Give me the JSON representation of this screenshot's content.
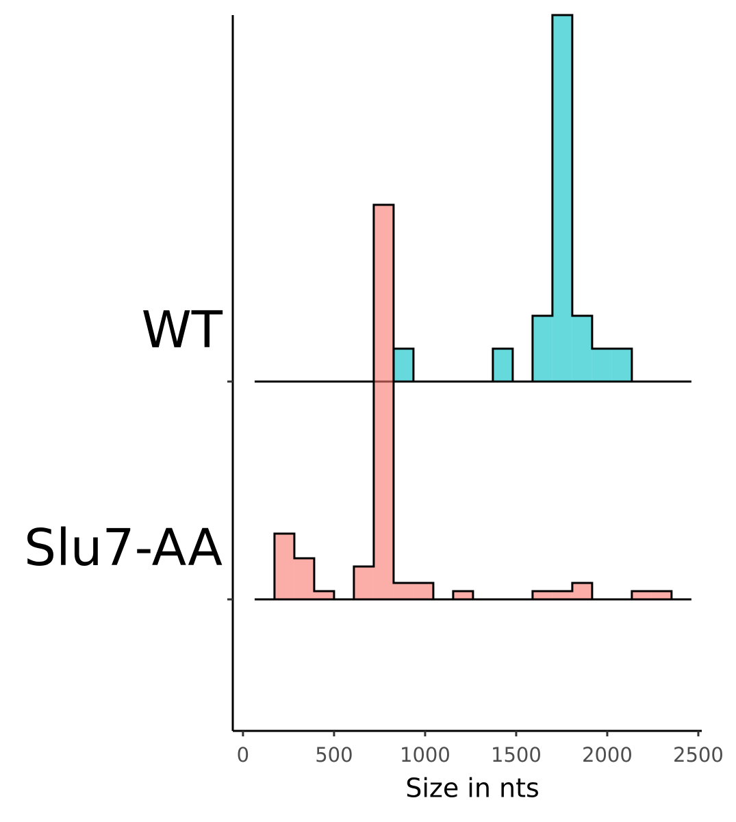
{
  "chart_data": {
    "type": "histogram",
    "x_label": "Size in nts",
    "bins": [
      64,
      173,
      282,
      391,
      500,
      609,
      718,
      827,
      936,
      1045,
      1154,
      1263,
      1372,
      1481,
      1590,
      1699,
      1808,
      1917,
      2026,
      2135,
      2244,
      2353,
      2462
    ],
    "series": [
      {
        "name": "WT",
        "color": "#00BFC4",
        "values": [
          0,
          0,
          0,
          0,
          0,
          0,
          0,
          4,
          0,
          0,
          0,
          0,
          4,
          0,
          8,
          45,
          8,
          4,
          4,
          0,
          0,
          0
        ]
      },
      {
        "name": "Slu7-AA",
        "color": "#F8766D",
        "values": [
          0,
          8,
          5,
          1,
          0,
          4,
          48,
          2,
          2,
          0,
          1,
          0,
          0,
          0,
          1,
          1,
          2,
          0,
          0,
          1,
          1,
          0
        ]
      }
    ],
    "xlim": [
      -56,
      2519
    ],
    "xticks": [
      0,
      500,
      1000,
      1500,
      2000,
      2500
    ]
  }
}
